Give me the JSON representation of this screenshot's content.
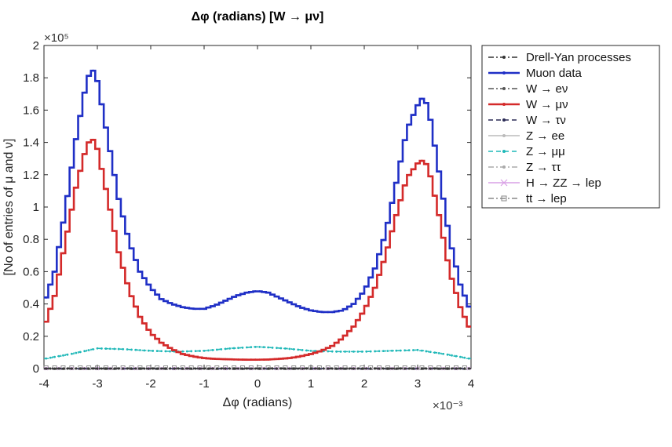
{
  "chart_data": {
    "type": "line",
    "title": "Δφ (radians) [W → μν]",
    "xlabel": "Δφ (radians)",
    "ylabel": "[No of entries of μ and ν]",
    "x_exponent": "×10⁻³",
    "y_exponent": "×10⁵",
    "xlim": [
      -4,
      4
    ],
    "ylim": [
      0,
      2
    ],
    "x_ticks": [
      "-4",
      "-3",
      "-2",
      "-1",
      "0",
      "1",
      "2",
      "3",
      "4"
    ],
    "y_ticks": [
      "0",
      "0.2",
      "0.4",
      "0.6",
      "0.8",
      "1",
      "1.2",
      "1.4",
      "1.6",
      "1.8",
      "2"
    ],
    "legend_position": "outside-right-top",
    "grid": false,
    "series": [
      {
        "name": "Drell-Yan processes",
        "color": "#333333",
        "style": "dash-dot",
        "marker": "dot",
        "x": [
          -4,
          4
        ],
        "y": [
          0.0,
          0.0
        ]
      },
      {
        "name": "Muon data",
        "color": "#1f2fc6",
        "style": "solid",
        "marker": "dot",
        "x": [
          -4.0,
          -3.8,
          -3.6,
          -3.4,
          -3.2,
          -3.1,
          -3.0,
          -2.8,
          -2.6,
          -2.4,
          -2.2,
          -2.0,
          -1.8,
          -1.6,
          -1.4,
          -1.2,
          -1.0,
          -0.8,
          -0.6,
          -0.4,
          -0.2,
          0.0,
          0.2,
          0.4,
          0.6,
          0.8,
          1.0,
          1.2,
          1.4,
          1.6,
          1.8,
          2.0,
          2.2,
          2.4,
          2.6,
          2.8,
          3.0,
          3.1,
          3.2,
          3.4,
          3.6,
          3.8,
          4.0
        ],
        "y": [
          0.4,
          0.6,
          0.98,
          1.42,
          1.78,
          1.86,
          1.78,
          1.42,
          1.05,
          0.78,
          0.6,
          0.5,
          0.43,
          0.4,
          0.38,
          0.37,
          0.37,
          0.39,
          0.42,
          0.45,
          0.47,
          0.48,
          0.47,
          0.44,
          0.41,
          0.38,
          0.36,
          0.35,
          0.35,
          0.36,
          0.4,
          0.48,
          0.62,
          0.84,
          1.15,
          1.48,
          1.63,
          1.68,
          1.62,
          1.22,
          0.8,
          0.52,
          0.35
        ]
      },
      {
        "name": "W → eν",
        "color": "#555555",
        "style": "dash-dot",
        "marker": "dot",
        "x": [
          -4,
          4
        ],
        "y": [
          0.0,
          0.0
        ]
      },
      {
        "name": "W → μν",
        "color": "#d42a2a",
        "style": "solid",
        "marker": "dot",
        "x": [
          -4.0,
          -3.8,
          -3.6,
          -3.4,
          -3.2,
          -3.1,
          -3.0,
          -2.8,
          -2.6,
          -2.4,
          -2.2,
          -2.0,
          -1.8,
          -1.6,
          -1.4,
          -1.2,
          -1.0,
          -0.8,
          -0.6,
          -0.4,
          -0.2,
          0.0,
          0.2,
          0.4,
          0.6,
          0.8,
          1.0,
          1.2,
          1.4,
          1.6,
          1.8,
          2.0,
          2.2,
          2.4,
          2.6,
          2.8,
          3.0,
          3.1,
          3.2,
          3.4,
          3.6,
          3.8,
          4.0
        ],
        "y": [
          0.25,
          0.45,
          0.78,
          1.12,
          1.38,
          1.43,
          1.36,
          1.05,
          0.72,
          0.48,
          0.32,
          0.22,
          0.16,
          0.12,
          0.09,
          0.075,
          0.065,
          0.06,
          0.058,
          0.056,
          0.055,
          0.055,
          0.056,
          0.06,
          0.065,
          0.075,
          0.09,
          0.11,
          0.14,
          0.19,
          0.26,
          0.36,
          0.5,
          0.7,
          0.95,
          1.18,
          1.27,
          1.29,
          1.25,
          0.95,
          0.6,
          0.38,
          0.23
        ]
      },
      {
        "name": "W → τν",
        "color": "#2a2a55",
        "style": "dashed",
        "marker": "dot",
        "x": [
          -4,
          4
        ],
        "y": [
          0.0,
          0.0
        ]
      },
      {
        "name": "Z → ee",
        "color": "#bbbbbb",
        "style": "solid",
        "marker": "dot",
        "x": [
          -4,
          4
        ],
        "y": [
          0.0,
          0.0
        ]
      },
      {
        "name": "Z → μμ",
        "color": "#1fb8b8",
        "style": "dashed",
        "marker": "dot",
        "x": [
          -4.0,
          -3.5,
          -3.0,
          -2.5,
          -2.0,
          -1.5,
          -1.0,
          -0.5,
          0.0,
          0.5,
          1.0,
          1.5,
          2.0,
          2.5,
          3.0,
          3.5,
          4.0
        ],
        "y": [
          0.06,
          0.09,
          0.125,
          0.12,
          0.11,
          0.105,
          0.11,
          0.125,
          0.135,
          0.125,
          0.11,
          0.105,
          0.105,
          0.11,
          0.115,
          0.09,
          0.06
        ]
      },
      {
        "name": "Z → ττ",
        "color": "#aaaaaa",
        "style": "dash-dot",
        "marker": "dot",
        "x": [
          -4,
          4
        ],
        "y": [
          0.0,
          0.0
        ]
      },
      {
        "name": "H → ZZ → lep",
        "color": "#d9a0e6",
        "style": "solid",
        "marker": "x",
        "x": [
          -4,
          4
        ],
        "y": [
          0.0,
          0.0
        ]
      },
      {
        "name": "tt → lep",
        "color": "#888888",
        "style": "dash-dot",
        "marker": "square",
        "x": [
          -4,
          4
        ],
        "y": [
          0.005,
          0.005
        ]
      }
    ]
  }
}
